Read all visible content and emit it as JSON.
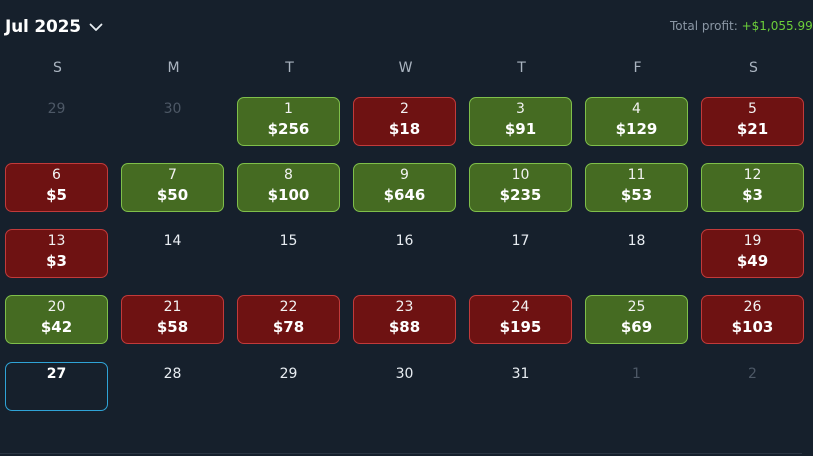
{
  "header": {
    "month": "Jul 2025",
    "profit_label": "Total profit:",
    "profit_value": "+$1,055.99",
    "chevron_icon": "chevron-down-icon"
  },
  "weekdays": [
    "S",
    "M",
    "T",
    "W",
    "T",
    "F",
    "S"
  ],
  "colors": {
    "background": "#16202c",
    "win_fill": "#456b22",
    "win_border": "#7fbf4a",
    "loss_fill": "#6e1212",
    "loss_border": "#c23a3a",
    "today_border": "#2fa3d6",
    "profit_text": "#6ccf3a"
  },
  "weeks": [
    [
      {
        "day": "29",
        "state": "other"
      },
      {
        "day": "30",
        "state": "other"
      },
      {
        "day": "1",
        "amount": "$256",
        "state": "win"
      },
      {
        "day": "2",
        "amount": "$18",
        "state": "loss"
      },
      {
        "day": "3",
        "amount": "$91",
        "state": "win"
      },
      {
        "day": "4",
        "amount": "$129",
        "state": "win"
      },
      {
        "day": "5",
        "amount": "$21",
        "state": "loss"
      }
    ],
    [
      {
        "day": "6",
        "amount": "$5",
        "state": "loss"
      },
      {
        "day": "7",
        "amount": "$50",
        "state": "win"
      },
      {
        "day": "8",
        "amount": "$100",
        "state": "win"
      },
      {
        "day": "9",
        "amount": "$646",
        "state": "win"
      },
      {
        "day": "10",
        "amount": "$235",
        "state": "win"
      },
      {
        "day": "11",
        "amount": "$53",
        "state": "win"
      },
      {
        "day": "12",
        "amount": "$3",
        "state": "win"
      }
    ],
    [
      {
        "day": "13",
        "amount": "$3",
        "state": "loss"
      },
      {
        "day": "14",
        "state": "plain"
      },
      {
        "day": "15",
        "state": "plain"
      },
      {
        "day": "16",
        "state": "plain"
      },
      {
        "day": "17",
        "state": "plain"
      },
      {
        "day": "18",
        "state": "plain"
      },
      {
        "day": "19",
        "amount": "$49",
        "state": "loss"
      }
    ],
    [
      {
        "day": "20",
        "amount": "$42",
        "state": "win"
      },
      {
        "day": "21",
        "amount": "$58",
        "state": "loss"
      },
      {
        "day": "22",
        "amount": "$78",
        "state": "loss"
      },
      {
        "day": "23",
        "amount": "$88",
        "state": "loss"
      },
      {
        "day": "24",
        "amount": "$195",
        "state": "loss"
      },
      {
        "day": "25",
        "amount": "$69",
        "state": "win"
      },
      {
        "day": "26",
        "amount": "$103",
        "state": "loss"
      }
    ],
    [
      {
        "day": "27",
        "state": "today"
      },
      {
        "day": "28",
        "state": "plain"
      },
      {
        "day": "29",
        "state": "plain"
      },
      {
        "day": "30",
        "state": "plain"
      },
      {
        "day": "31",
        "state": "plain"
      },
      {
        "day": "1",
        "state": "other"
      },
      {
        "day": "2",
        "state": "other"
      }
    ]
  ]
}
